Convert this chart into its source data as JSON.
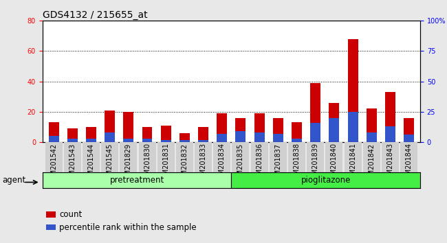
{
  "title": "GDS4132 / 215655_at",
  "categories": [
    "GSM201542",
    "GSM201543",
    "GSM201544",
    "GSM201545",
    "GSM201829",
    "GSM201830",
    "GSM201831",
    "GSM201832",
    "GSM201833",
    "GSM201834",
    "GSM201835",
    "GSM201836",
    "GSM201837",
    "GSM201838",
    "GSM201839",
    "GSM201840",
    "GSM201841",
    "GSM201842",
    "GSM201843",
    "GSM201844"
  ],
  "count_values": [
    13,
    9,
    10,
    21,
    20,
    10,
    11,
    6,
    10,
    19,
    16,
    19,
    16,
    13,
    39,
    26,
    68,
    22,
    33,
    16
  ],
  "percentile_values": [
    5,
    3,
    3,
    8,
    3,
    3,
    2,
    2,
    2,
    7,
    9,
    8,
    7,
    3,
    16,
    20,
    25,
    8,
    13,
    6
  ],
  "count_color": "#cc0000",
  "percentile_color": "#3355cc",
  "left_ylim": [
    0,
    80
  ],
  "right_ylim": [
    0,
    100
  ],
  "left_yticks": [
    0,
    20,
    40,
    60,
    80
  ],
  "right_yticks": [
    0,
    25,
    50,
    75,
    100
  ],
  "right_yticklabels": [
    "0",
    "25",
    "50",
    "75",
    "100%"
  ],
  "group_labels": [
    "pretreatment",
    "pioglitazone"
  ],
  "group_colors": [
    "#aaffaa",
    "#44ee44"
  ],
  "agent_label": "agent",
  "legend_count": "count",
  "legend_percentile": "percentile rank within the sample",
  "bar_width": 0.55,
  "background_color": "#e8e8e8",
  "plot_bg_color": "#ffffff",
  "ticklabel_bg": "#d0d0d0",
  "title_fontsize": 10,
  "tick_fontsize": 7,
  "legend_fontsize": 8.5
}
